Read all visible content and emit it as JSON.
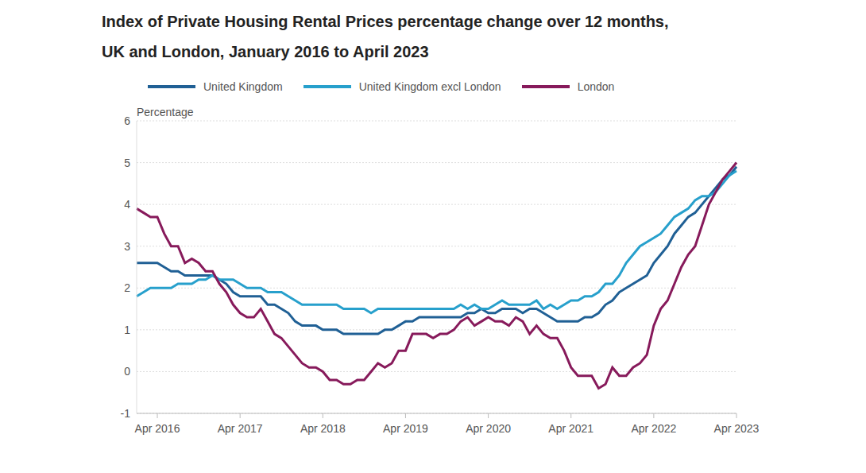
{
  "chart_data": {
    "type": "line",
    "title": [
      "Index of Private Housing Rental Prices percentage change over 12 months,",
      "UK and London, January 2016 to April 2023"
    ],
    "y_label": "Percentage",
    "legend": "top",
    "grid": true,
    "categories": [
      null,
      null,
      null,
      "Apr 2016",
      null,
      null,
      null,
      null,
      null,
      null,
      null,
      null,
      null,
      null,
      null,
      "Apr 2017",
      null,
      null,
      null,
      null,
      null,
      null,
      null,
      null,
      null,
      null,
      null,
      "Apr 2018",
      null,
      null,
      null,
      null,
      null,
      null,
      null,
      null,
      null,
      null,
      null,
      "Apr 2019",
      null,
      null,
      null,
      null,
      null,
      null,
      null,
      null,
      null,
      null,
      null,
      "Apr 2020",
      null,
      null,
      null,
      null,
      null,
      null,
      null,
      null,
      null,
      null,
      null,
      "Apr 2021",
      null,
      null,
      null,
      null,
      null,
      null,
      null,
      null,
      null,
      null,
      null,
      "Apr 2022",
      null,
      null,
      null,
      null,
      null,
      null,
      null,
      null,
      null,
      null,
      null,
      "Apr 2023"
    ],
    "ylim": [
      -1,
      6
    ],
    "yticks": [
      -1,
      0,
      1,
      2,
      3,
      4,
      5,
      6
    ],
    "series": [
      {
        "name": "United Kingdom",
        "color": "#206095",
        "values": [
          2.6,
          2.6,
          2.6,
          2.6,
          2.5,
          2.4,
          2.4,
          2.3,
          2.3,
          2.3,
          2.3,
          2.3,
          2.2,
          2.1,
          1.9,
          1.8,
          1.8,
          1.8,
          1.8,
          1.6,
          1.6,
          1.5,
          1.4,
          1.2,
          1.1,
          1.1,
          1.1,
          1.0,
          1.0,
          1.0,
          0.9,
          0.9,
          0.9,
          0.9,
          0.9,
          0.9,
          1.0,
          1.0,
          1.1,
          1.2,
          1.2,
          1.3,
          1.3,
          1.3,
          1.3,
          1.3,
          1.3,
          1.3,
          1.4,
          1.4,
          1.5,
          1.4,
          1.4,
          1.5,
          1.5,
          1.5,
          1.4,
          1.5,
          1.5,
          1.4,
          1.3,
          1.2,
          1.2,
          1.2,
          1.2,
          1.3,
          1.3,
          1.4,
          1.6,
          1.7,
          1.9,
          2.0,
          2.1,
          2.2,
          2.3,
          2.6,
          2.8,
          3.0,
          3.3,
          3.5,
          3.7,
          3.8,
          4.0,
          4.2,
          4.4,
          4.6,
          4.7,
          4.9
        ]
      },
      {
        "name": "United Kingdom excl London",
        "color": "#27a0cc",
        "values": [
          1.8,
          1.9,
          2.0,
          2.0,
          2.0,
          2.0,
          2.1,
          2.1,
          2.1,
          2.2,
          2.2,
          2.3,
          2.2,
          2.2,
          2.2,
          2.1,
          2.0,
          2.0,
          2.0,
          1.9,
          1.9,
          1.9,
          1.8,
          1.7,
          1.6,
          1.6,
          1.6,
          1.6,
          1.6,
          1.6,
          1.5,
          1.5,
          1.5,
          1.5,
          1.4,
          1.5,
          1.5,
          1.5,
          1.5,
          1.5,
          1.5,
          1.5,
          1.5,
          1.5,
          1.5,
          1.5,
          1.5,
          1.6,
          1.5,
          1.6,
          1.5,
          1.5,
          1.6,
          1.7,
          1.6,
          1.6,
          1.6,
          1.6,
          1.7,
          1.5,
          1.6,
          1.5,
          1.6,
          1.7,
          1.7,
          1.8,
          1.8,
          1.9,
          2.1,
          2.1,
          2.3,
          2.6,
          2.8,
          3.0,
          3.1,
          3.2,
          3.3,
          3.5,
          3.7,
          3.8,
          3.9,
          4.1,
          4.2,
          4.2,
          4.3,
          4.5,
          4.7,
          4.8
        ]
      },
      {
        "name": "London",
        "color": "#871a5b",
        "values": [
          3.9,
          3.8,
          3.7,
          3.7,
          3.3,
          3.0,
          3.0,
          2.6,
          2.7,
          2.6,
          2.4,
          2.4,
          2.1,
          1.9,
          1.6,
          1.4,
          1.3,
          1.3,
          1.5,
          1.2,
          0.9,
          0.8,
          0.6,
          0.4,
          0.2,
          0.1,
          0.1,
          0.0,
          -0.2,
          -0.2,
          -0.3,
          -0.3,
          -0.2,
          -0.2,
          0.0,
          0.2,
          0.1,
          0.2,
          0.5,
          0.5,
          0.9,
          0.9,
          0.9,
          0.8,
          0.9,
          0.9,
          1.0,
          1.2,
          1.3,
          1.1,
          1.2,
          1.3,
          1.2,
          1.2,
          1.1,
          1.3,
          1.2,
          0.9,
          1.1,
          0.9,
          0.8,
          0.8,
          0.5,
          0.1,
          -0.1,
          -0.1,
          -0.1,
          -0.4,
          -0.3,
          0.1,
          -0.1,
          -0.1,
          0.1,
          0.2,
          0.4,
          1.1,
          1.5,
          1.7,
          2.1,
          2.5,
          2.8,
          3.0,
          3.5,
          4.0,
          4.3,
          4.6,
          4.8,
          5.0
        ]
      }
    ]
  }
}
